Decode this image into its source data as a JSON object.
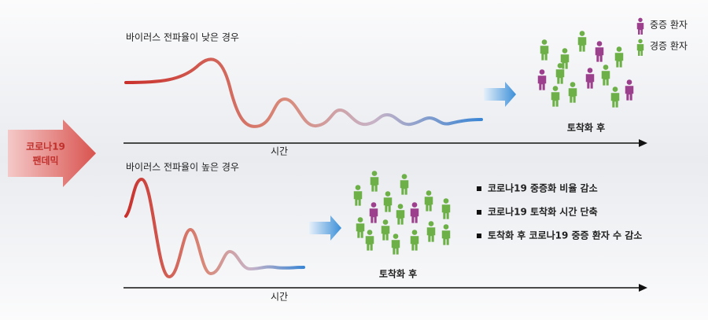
{
  "pandemic_label": [
    "코로나19",
    "팬데믹"
  ],
  "legend": [
    {
      "label": "중증 환자",
      "color": "#9c3f8c"
    },
    {
      "label": "경증 환자",
      "color": "#6cb047"
    }
  ],
  "panels": [
    {
      "title": "바이러스 전파율이 낮은 경우",
      "axis_label": "시간",
      "result_label": "토착화 후"
    },
    {
      "title": "바이러스 전파율이 높은 경우",
      "axis_label": "시간",
      "result_label": "토착화 후"
    }
  ],
  "bullets": [
    "코로나19 중증화 비율 감소",
    "코로나19 토착화 시간 단축",
    "토착화 후 코로나19 중증 환자 수 감소"
  ]
}
